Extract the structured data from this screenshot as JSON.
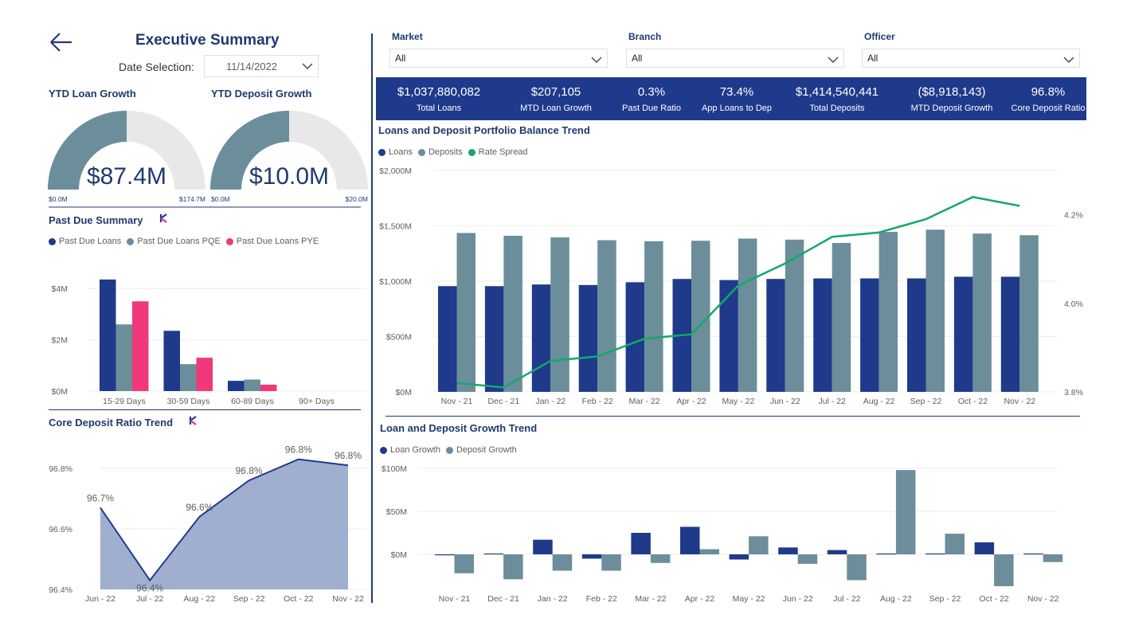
{
  "header": {
    "title": "Executive Summary",
    "date_label": "Date Selection:",
    "date_value": "11/14/2022"
  },
  "gauges": [
    {
      "title": "YTD Loan Growth",
      "value": 87.4,
      "value_text": "$87.4M",
      "min": "$0.0M",
      "max": "$174.7M",
      "max_value": 174.7
    },
    {
      "title": "YTD Deposit Growth",
      "value": 10.0,
      "value_text": "$10.0M",
      "min": "$0.0M",
      "max": "$20.0M",
      "max_value": 20.0
    }
  ],
  "filters": [
    {
      "label": "Market",
      "value": "All"
    },
    {
      "label": "Branch",
      "value": "All"
    },
    {
      "label": "Officer",
      "value": "All"
    }
  ],
  "kpis": [
    {
      "value": "$1,037,880,082",
      "label": "Total Loans"
    },
    {
      "value": "$207,105",
      "label": "MTD Loan Growth"
    },
    {
      "value": "0.3%",
      "label": "Past Due Ratio"
    },
    {
      "value": "73.4%",
      "label": "App Loans to Dep"
    },
    {
      "value": "$1,414,540,441",
      "label": "Total Deposits"
    },
    {
      "value": "($8,918,143)",
      "label": "MTD Deposit Growth"
    },
    {
      "value": "96.8%",
      "label": "Core Deposit Ratio"
    }
  ],
  "colors": {
    "navy": "#1f3a8a",
    "slate": "#6b8e9a",
    "pink": "#f0387a",
    "green": "#13a96a",
    "area": "#a0aed0",
    "kpi_bg": "#1f3a8a",
    "gauge_empty": "#e8e8e8"
  },
  "chart_data": [
    {
      "id": "past_due",
      "type": "bar",
      "title": "Past Due Summary",
      "categories": [
        "15-29 Days",
        "30-59 Days",
        "60-89 Days",
        "90+ Days"
      ],
      "series": [
        {
          "name": "Past Due Loans",
          "values": [
            4.35,
            2.35,
            0.4,
            0
          ]
        },
        {
          "name": "Past Due Loans PQE",
          "values": [
            2.6,
            1.05,
            0.45,
            0
          ]
        },
        {
          "name": "Past Due Loans PYE",
          "values": [
            3.5,
            1.3,
            0.25,
            0
          ]
        }
      ],
      "yticks": [
        "$0M",
        "$2M",
        "$4M"
      ],
      "ylim": [
        0,
        5
      ]
    },
    {
      "id": "core_deposit",
      "type": "area",
      "title": "Core Deposit Ratio Trend",
      "categories": [
        "Jun - 22",
        "Jul - 22",
        "Aug - 22",
        "Sep - 22",
        "Oct - 22",
        "Nov - 22"
      ],
      "values": [
        96.67,
        96.43,
        96.64,
        96.76,
        96.83,
        96.81
      ],
      "data_labels": [
        "96.7%",
        "96.4%",
        "96.6%",
        "96.8%",
        "96.8%",
        "96.8%"
      ],
      "yticks": [
        "96.4%",
        "96.6%",
        "96.8%"
      ],
      "ylim": [
        96.4,
        96.9
      ]
    },
    {
      "id": "balance_trend",
      "type": "bar",
      "title": "Loans and Deposit Portfolio Balance Trend",
      "categories": [
        "Nov - 21",
        "Dec - 21",
        "Jan - 22",
        "Feb - 22",
        "Mar - 22",
        "Apr - 22",
        "May - 22",
        "Jun - 22",
        "Jul - 22",
        "Aug - 22",
        "Sep - 22",
        "Oct - 22",
        "Nov - 22"
      ],
      "series": [
        {
          "name": "Loans",
          "values": [
            955,
            955,
            970,
            965,
            990,
            1020,
            1010,
            1020,
            1025,
            1025,
            1025,
            1040,
            1040
          ]
        },
        {
          "name": "Deposits",
          "values": [
            1435,
            1410,
            1395,
            1370,
            1360,
            1365,
            1385,
            1375,
            1345,
            1445,
            1465,
            1430,
            1415
          ]
        },
        {
          "name": "Rate Spread",
          "values": [
            3.82,
            3.81,
            3.87,
            3.88,
            3.92,
            3.93,
            4.04,
            4.09,
            4.15,
            4.16,
            4.19,
            4.24,
            4.22
          ]
        }
      ],
      "yticks": [
        "$0M",
        "$500M",
        "$1,000M",
        "$1,500M",
        "$2,000M"
      ],
      "ylim": [
        0,
        2000
      ],
      "y2ticks": [
        "3.8%",
        "4.0%",
        "4.2%"
      ],
      "y2lim": [
        3.8,
        4.3
      ]
    },
    {
      "id": "growth_trend",
      "type": "bar",
      "title": "Loan and Deposit Growth Trend",
      "categories": [
        "Nov - 21",
        "Dec - 21",
        "Jan - 22",
        "Feb - 22",
        "Mar - 22",
        "Apr - 22",
        "May - 22",
        "Jun - 22",
        "Jul - 22",
        "Aug - 22",
        "Sep - 22",
        "Oct - 22",
        "Nov - 22"
      ],
      "series": [
        {
          "name": "Loan Growth",
          "values": [
            -1,
            1,
            17,
            -5,
            25,
            32,
            -6,
            8,
            5,
            1,
            1,
            14,
            1
          ]
        },
        {
          "name": "Deposit Growth",
          "values": [
            -22,
            -29,
            -19,
            -19,
            -10,
            6,
            21,
            -11,
            -30,
            98,
            24,
            -37,
            -9
          ]
        }
      ],
      "yticks": [
        "$0M",
        "$50M",
        "$100M"
      ],
      "ylim": [
        -45,
        100
      ]
    }
  ]
}
